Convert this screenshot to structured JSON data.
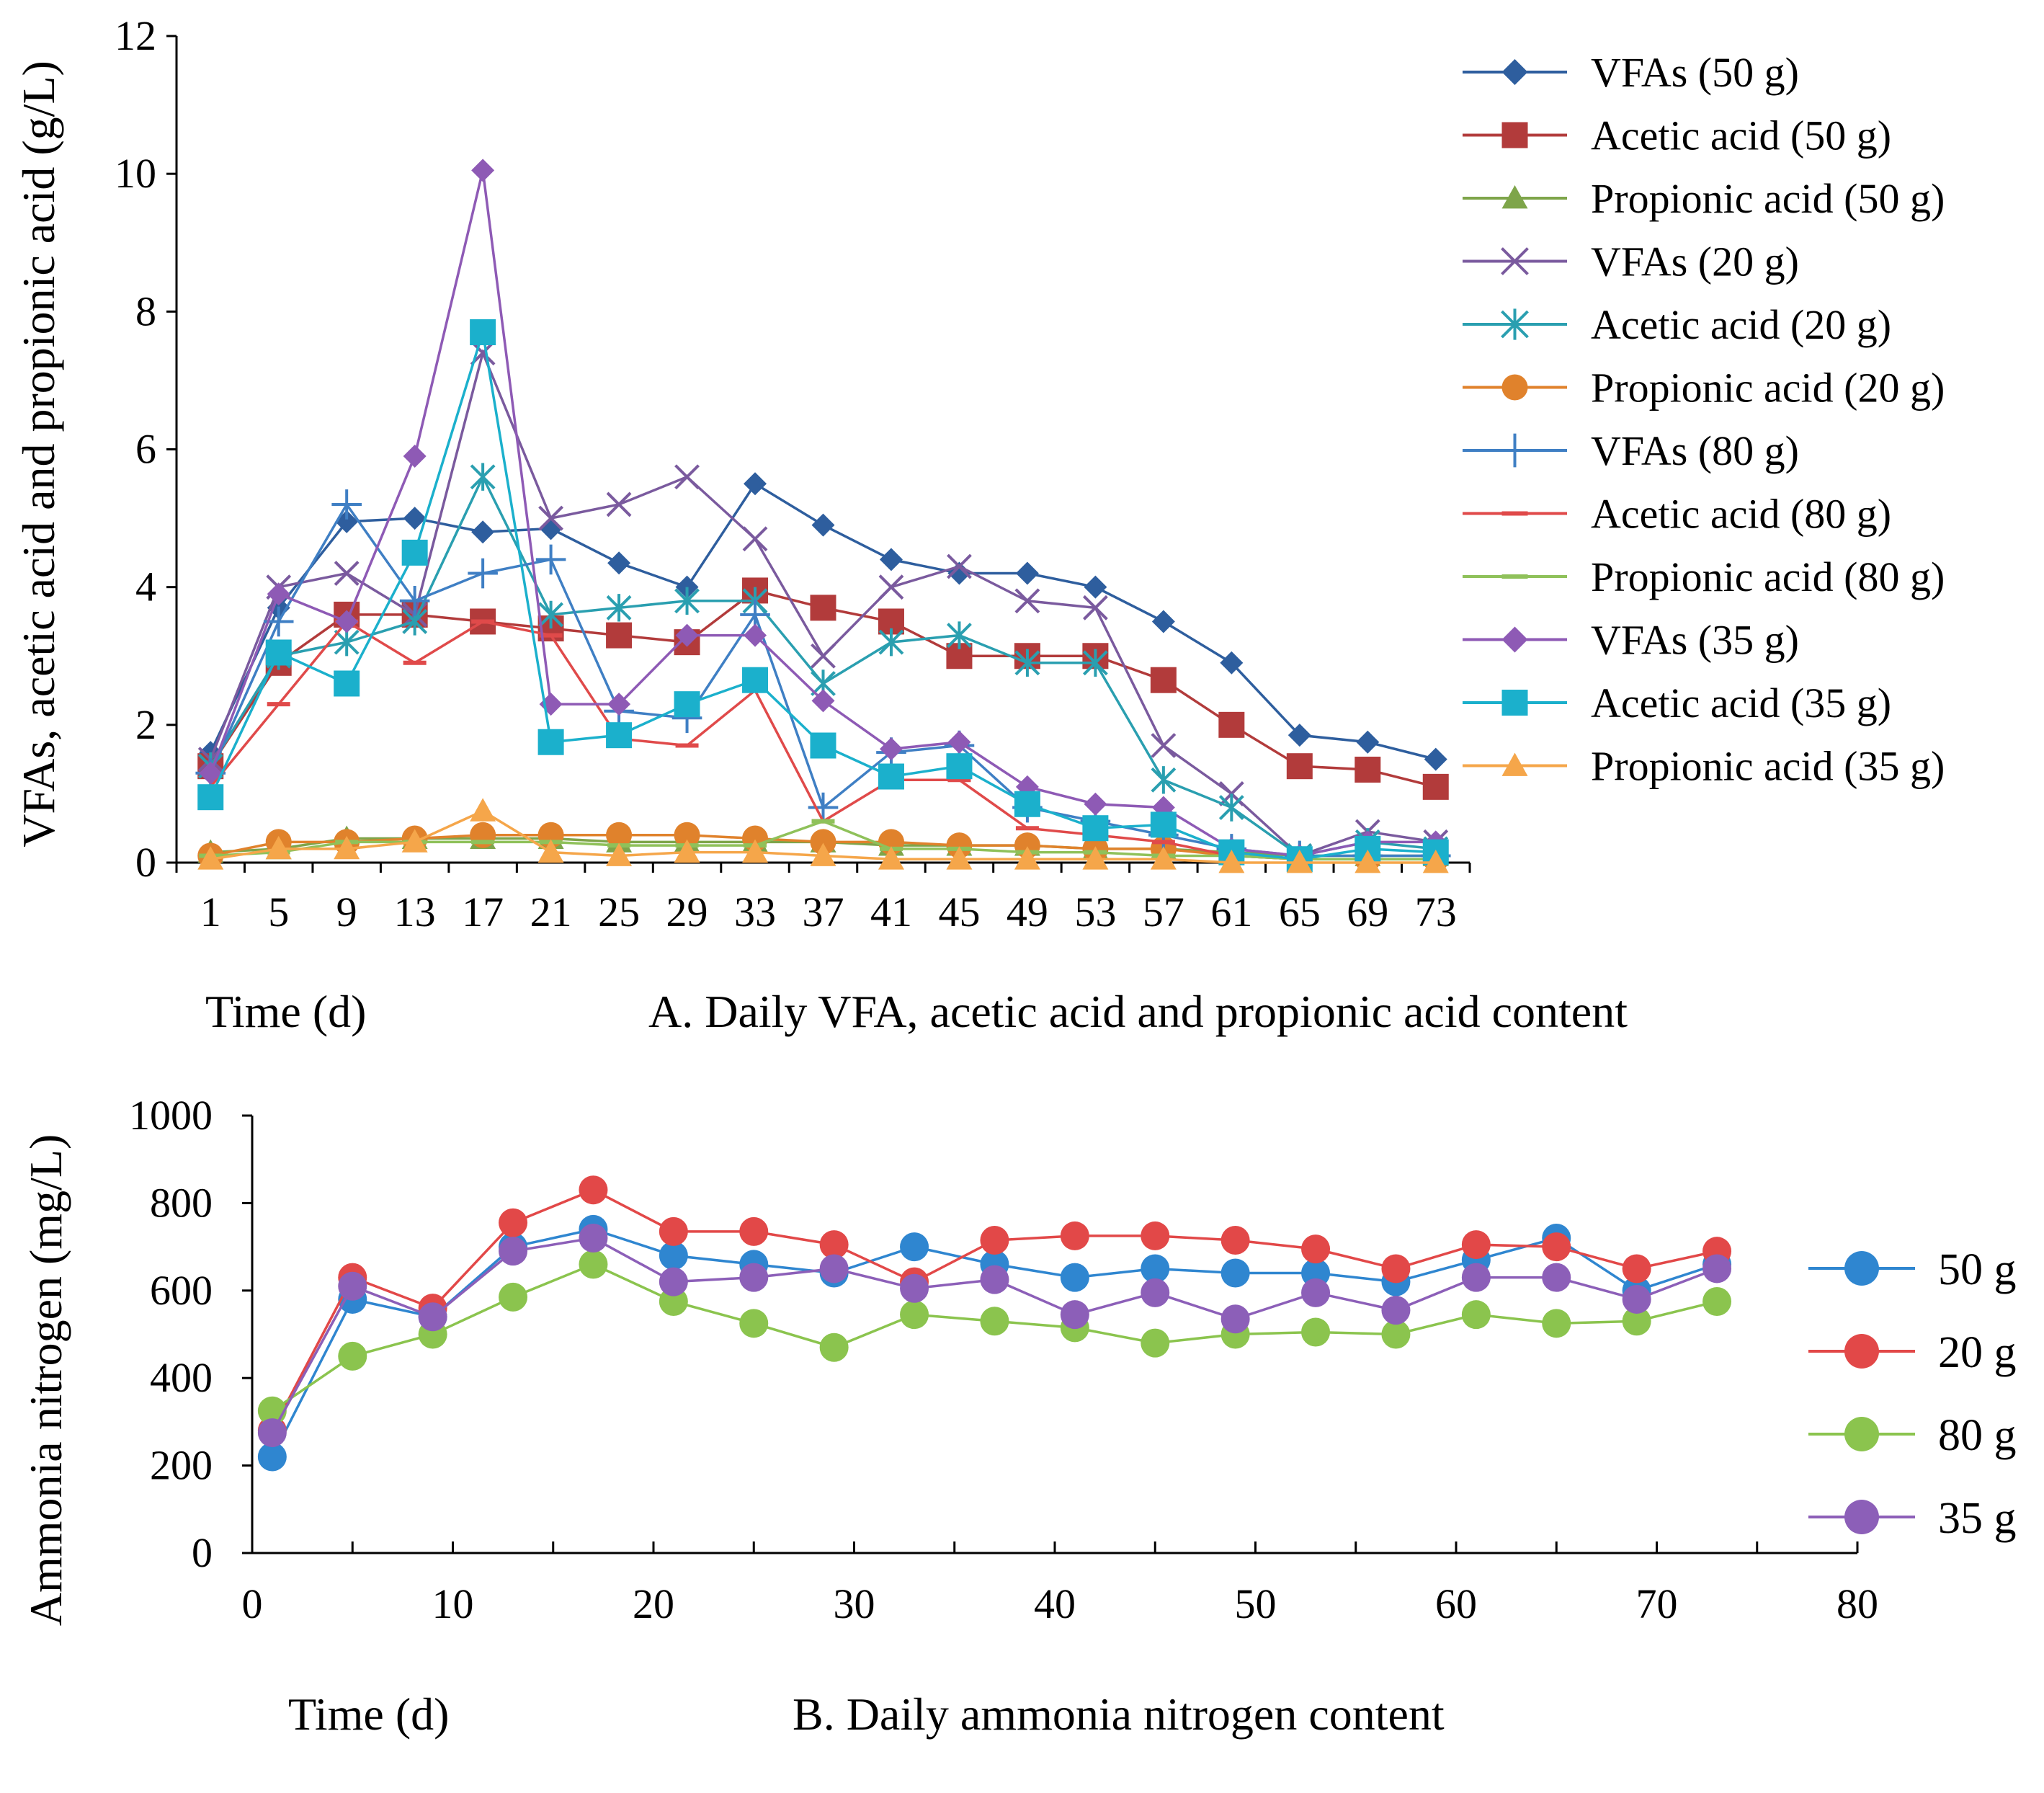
{
  "chart_data": [
    {
      "type": "line",
      "title": "A. Daily VFA, acetic acid and propionic acid  content",
      "xlabel": "Time (d)",
      "ylabel": "VFAs, acetic acid and propionic acid (g/L)",
      "ylim": [
        0,
        12
      ],
      "yticks": [
        "0",
        "2",
        "4",
        "6",
        "8",
        "10",
        "12"
      ],
      "categories": [
        "1",
        "5",
        "9",
        "13",
        "17",
        "21",
        "25",
        "29",
        "33",
        "37",
        "41",
        "45",
        "49",
        "53",
        "57",
        "61",
        "65",
        "69",
        "73"
      ],
      "legend_position": "right",
      "series": [
        {
          "name": "VFAs (50 g)",
          "color": "#2e5e9e",
          "marker": "diamond",
          "values": [
            1.6,
            3.7,
            4.95,
            5.0,
            4.8,
            4.85,
            4.35,
            4.0,
            5.5,
            4.9,
            4.4,
            4.2,
            4.2,
            4.0,
            3.5,
            2.9,
            1.85,
            1.75,
            1.5
          ]
        },
        {
          "name": "Acetic acid (50 g)",
          "color": "#b23b3b",
          "marker": "square",
          "values": [
            1.4,
            2.9,
            3.6,
            3.6,
            3.5,
            3.4,
            3.3,
            3.2,
            3.95,
            3.7,
            3.5,
            3.0,
            3.0,
            3.0,
            2.65,
            2.0,
            1.4,
            1.35,
            1.1
          ]
        },
        {
          "name": "Propionic acid (50 g)",
          "color": "#7ea54a",
          "marker": "triangle",
          "values": [
            0.15,
            0.2,
            0.35,
            0.35,
            0.35,
            0.35,
            0.3,
            0.3,
            0.3,
            0.3,
            0.25,
            0.25,
            0.25,
            0.2,
            0.2,
            0.15,
            0.1,
            0.1,
            0.1
          ]
        },
        {
          "name": "VFAs (20 g)",
          "color": "#7a5a9e",
          "marker": "x",
          "values": [
            1.5,
            4.0,
            4.2,
            3.6,
            7.4,
            5.0,
            5.2,
            5.6,
            4.7,
            3.0,
            4.0,
            4.3,
            3.8,
            3.7,
            1.7,
            1.0,
            0.1,
            0.45,
            0.3
          ]
        },
        {
          "name": "Acetic acid (20 g)",
          "color": "#2a9fb0",
          "marker": "star",
          "values": [
            1.4,
            3.0,
            3.2,
            3.5,
            5.6,
            3.6,
            3.7,
            3.8,
            3.8,
            2.6,
            3.2,
            3.3,
            2.9,
            2.9,
            1.2,
            0.8,
            0.1,
            0.3,
            0.2
          ]
        },
        {
          "name": "Propionic acid (20 g)",
          "color": "#e0822c",
          "marker": "circle",
          "values": [
            0.1,
            0.3,
            0.3,
            0.35,
            0.4,
            0.4,
            0.4,
            0.4,
            0.35,
            0.3,
            0.3,
            0.25,
            0.25,
            0.2,
            0.2,
            0.1,
            0.05,
            0.05,
            0.05
          ]
        },
        {
          "name": "VFAs (80 g)",
          "color": "#3f7fc4",
          "marker": "plus",
          "values": [
            1.3,
            3.5,
            5.2,
            3.8,
            4.2,
            4.4,
            2.2,
            2.1,
            3.6,
            0.8,
            1.6,
            1.7,
            0.8,
            0.6,
            0.4,
            0.2,
            0.1,
            0.1,
            0.1
          ]
        },
        {
          "name": "Acetic acid (80 g)",
          "color": "#e04a4a",
          "marker": "dash",
          "values": [
            1.1,
            2.3,
            3.5,
            2.9,
            3.5,
            3.3,
            1.8,
            1.7,
            2.5,
            0.6,
            1.2,
            1.2,
            0.5,
            0.4,
            0.3,
            0.1,
            0.05,
            0.05,
            0.05
          ]
        },
        {
          "name": "Propionic acid (80 g)",
          "color": "#8fc15a",
          "marker": "dash",
          "values": [
            0.1,
            0.15,
            0.3,
            0.3,
            0.3,
            0.3,
            0.25,
            0.25,
            0.25,
            0.6,
            0.2,
            0.2,
            0.15,
            0.15,
            0.1,
            0.1,
            0.05,
            0.05,
            0.05
          ]
        },
        {
          "name": "VFAs (35 g)",
          "color": "#8e5ab5",
          "marker": "diamond",
          "values": [
            1.3,
            3.9,
            3.5,
            5.9,
            10.05,
            2.3,
            2.3,
            3.3,
            3.3,
            2.35,
            1.65,
            1.75,
            1.1,
            0.85,
            0.8,
            0.2,
            0.1,
            0.3,
            0.3
          ]
        },
        {
          "name": "Acetic acid (35 g)",
          "color": "#1bb0cc",
          "marker": "square",
          "values": [
            0.95,
            3.05,
            2.6,
            4.5,
            7.7,
            1.75,
            1.85,
            2.3,
            2.65,
            1.7,
            1.25,
            1.4,
            0.85,
            0.5,
            0.55,
            0.15,
            0.05,
            0.2,
            0.15
          ]
        },
        {
          "name": "Propionic acid (35 g)",
          "color": "#f5a64a",
          "marker": "triangle",
          "values": [
            0.05,
            0.2,
            0.2,
            0.3,
            0.75,
            0.15,
            0.1,
            0.15,
            0.15,
            0.1,
            0.05,
            0.05,
            0.05,
            0.05,
            0.05,
            0.0,
            0.0,
            0.0,
            0.0
          ]
        }
      ]
    },
    {
      "type": "line",
      "title": "B. Daily ammonia nitrogen content",
      "xlabel": "Time (d)",
      "ylabel": "Ammonia nitrogen (mg/L)",
      "xlim": [
        0,
        80
      ],
      "ylim": [
        0,
        1000
      ],
      "xticks": [
        "0",
        "10",
        "20",
        "30",
        "40",
        "50",
        "60",
        "70",
        "80"
      ],
      "yticks": [
        "0",
        "200",
        "400",
        "600",
        "800",
        "1000"
      ],
      "x": [
        1,
        5,
        9,
        13,
        17,
        21,
        25,
        29,
        33,
        37,
        41,
        45,
        49,
        53,
        57,
        61,
        65,
        69,
        73
      ],
      "legend_position": "right",
      "series": [
        {
          "name": "50 g",
          "color": "#2f86d0",
          "values": [
            220,
            580,
            540,
            700,
            740,
            680,
            660,
            640,
            700,
            660,
            630,
            650,
            640,
            640,
            620,
            670,
            720,
            600,
            660
          ]
        },
        {
          "name": "20 g",
          "color": "#e24848",
          "values": [
            280,
            630,
            560,
            755,
            830,
            735,
            735,
            705,
            620,
            715,
            725,
            725,
            715,
            695,
            650,
            705,
            700,
            650,
            690
          ]
        },
        {
          "name": "80 g",
          "color": "#8bc44e",
          "values": [
            325,
            450,
            500,
            585,
            660,
            575,
            525,
            470,
            545,
            530,
            515,
            480,
            500,
            505,
            500,
            545,
            525,
            530,
            575
          ]
        },
        {
          "name": "35 g",
          "color": "#8c5fb8",
          "values": [
            275,
            610,
            540,
            690,
            720,
            620,
            630,
            650,
            605,
            625,
            545,
            595,
            535,
            595,
            555,
            630,
            630,
            580,
            650
          ]
        }
      ]
    }
  ]
}
